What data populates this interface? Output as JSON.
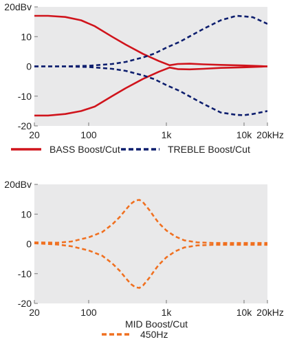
{
  "chart_data": [
    {
      "type": "line",
      "xscale": "log",
      "xlim": [
        20,
        20000
      ],
      "ylim": [
        -20,
        20
      ],
      "xticks": [
        20,
        100,
        1000,
        10000,
        20000
      ],
      "xtick_labels": [
        "20",
        "100",
        "1k",
        "10k",
        "20kHz"
      ],
      "yticks": [
        20,
        10,
        0,
        -10,
        -20
      ],
      "ytick_labels": [
        "20dBv",
        "10",
        "0",
        "-10",
        "-20"
      ],
      "grid": false,
      "legend_position": "bottom",
      "series": [
        {
          "name": "BASS Boost/Cut",
          "style": "solid",
          "color": "#d0141c",
          "curves": [
            {
              "x": [
                20,
                30,
                50,
                80,
                120,
                200,
                300,
                500,
                800,
                1100,
                1400,
                2000,
                3000,
                5000,
                10000,
                20000
              ],
              "y": [
                17,
                17,
                16.6,
                15.5,
                13.5,
                10,
                7.3,
                4.2,
                1.8,
                0.4,
                0.8,
                0.9,
                0.7,
                0.5,
                0.3,
                0
              ]
            },
            {
              "x": [
                20,
                30,
                50,
                80,
                120,
                200,
                300,
                500,
                800,
                1100,
                1400,
                2000,
                3000,
                5000,
                10000,
                20000
              ],
              "y": [
                -16.5,
                -16.5,
                -16,
                -15,
                -13.5,
                -10,
                -7.3,
                -4.2,
                -1.8,
                -0.4,
                -0.9,
                -1.0,
                -0.8,
                -0.5,
                -0.3,
                0
              ]
            }
          ]
        },
        {
          "name": "TREBLE Boost/Cut",
          "style": "dashed",
          "color": "#0d1e6e",
          "curves": [
            {
              "x": [
                20,
                50,
                100,
                200,
                300,
                500,
                700,
                1000,
                1500,
                2000,
                3000,
                5000,
                8000,
                10000,
                13000,
                20000
              ],
              "y": [
                0,
                0,
                0.2,
                0.8,
                1.5,
                3,
                4.3,
                6.3,
                8.3,
                10.1,
                12.6,
                15.5,
                17,
                16.8,
                16.5,
                14.3
              ]
            },
            {
              "x": [
                20,
                50,
                100,
                200,
                300,
                500,
                700,
                1000,
                1500,
                2000,
                3000,
                5000,
                8000,
                10000,
                13000,
                20000
              ],
              "y": [
                0,
                0,
                -0.2,
                -0.8,
                -1.5,
                -3,
                -4.3,
                -6.3,
                -8.3,
                -10.1,
                -12.6,
                -15.5,
                -16.3,
                -16.4,
                -16,
                -15
              ]
            }
          ]
        }
      ]
    },
    {
      "type": "line",
      "xscale": "log",
      "xlim": [
        20,
        20000
      ],
      "ylim": [
        -20,
        20
      ],
      "xticks": [
        20,
        100,
        1000,
        10000,
        20000
      ],
      "xtick_labels": [
        "20",
        "100",
        "1k",
        "10k",
        "20kHz"
      ],
      "yticks": [
        20,
        10,
        0,
        -10,
        -20
      ],
      "ytick_labels": [
        "20dBv",
        "10",
        "0",
        "-10",
        "-20"
      ],
      "grid": false,
      "title": "MID Boost/Cut",
      "legend_position": "bottom",
      "series": [
        {
          "name": "450Hz",
          "style": "dashed",
          "color": "#f07020",
          "curves": [
            {
              "x": [
                20,
                40,
                60,
                100,
                150,
                200,
                250,
                300,
                350,
                400,
                450,
                500,
                600,
                700,
                800,
                1000,
                1300,
                1700,
                2500,
                4000,
                10000,
                20000
              ],
              "y": [
                0.5,
                0.4,
                0.8,
                2.2,
                4,
                6.5,
                9,
                11.5,
                13.5,
                14.6,
                14.8,
                14,
                11.5,
                9,
                7,
                4.5,
                2.5,
                1.2,
                0.5,
                0.3,
                0.3,
                0.3
              ]
            },
            {
              "x": [
                20,
                40,
                60,
                100,
                150,
                200,
                250,
                300,
                350,
                400,
                450,
                500,
                600,
                700,
                800,
                1000,
                1300,
                1700,
                2500,
                4000,
                10000,
                20000
              ],
              "y": [
                0.2,
                -0.2,
                -0.8,
                -2.2,
                -4,
                -6.5,
                -9,
                -11.5,
                -13.5,
                -14.6,
                -14.8,
                -14,
                -11.5,
                -9,
                -7,
                -4.5,
                -2.5,
                -1.2,
                -0.5,
                -0.3,
                -0.3,
                -0.3
              ]
            }
          ]
        }
      ]
    }
  ]
}
